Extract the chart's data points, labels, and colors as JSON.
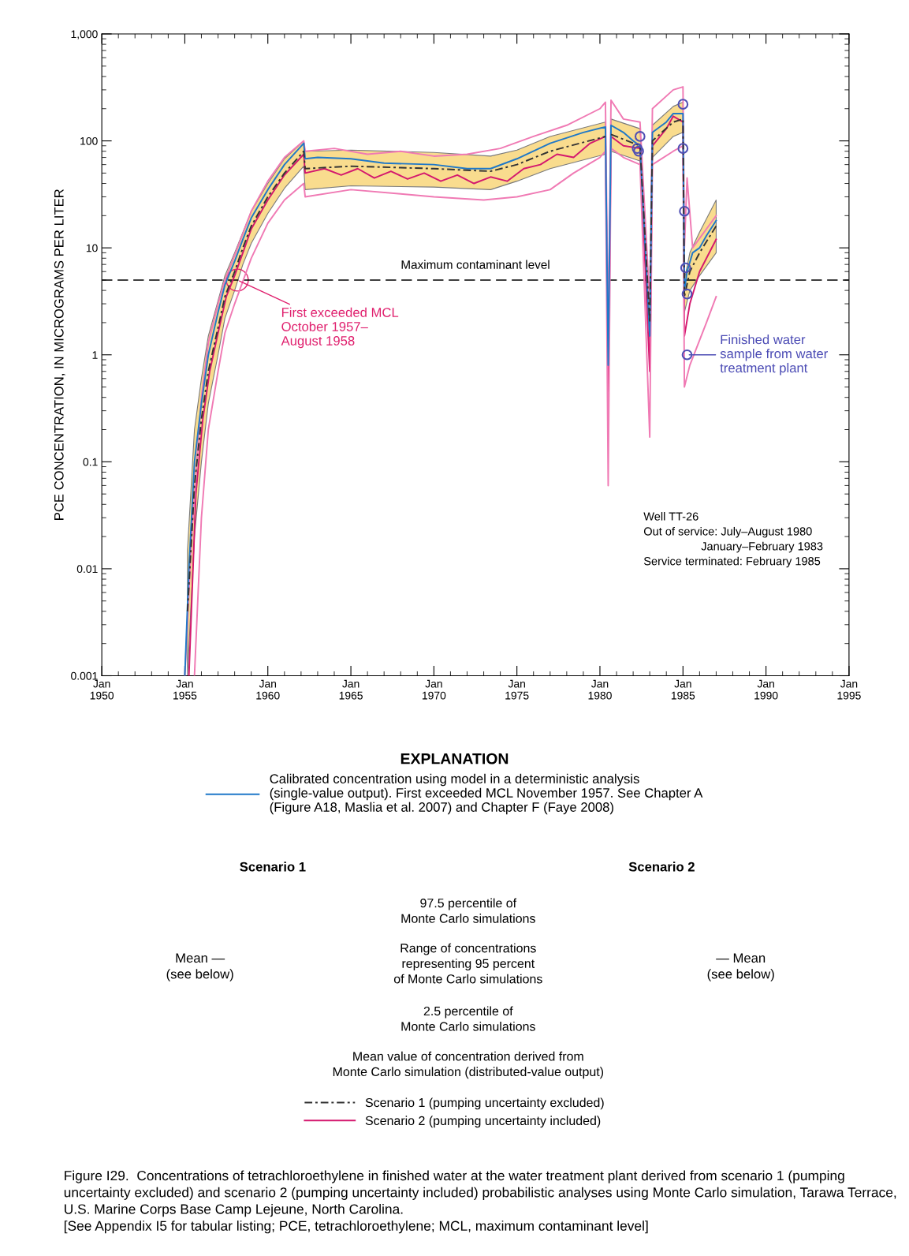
{
  "chart_data": {
    "type": "line",
    "ylabel": "PCE CONCENTRATION, IN MICROGRAMS PER LITER",
    "log": "y",
    "grid": false,
    "legend": "bottom",
    "legend_title": "EXPLANATION",
    "xlim": [
      "1950-01",
      "1995-01"
    ],
    "xticks": [
      {
        "value": "1950-01",
        "label": "Jan\n1950"
      },
      {
        "value": "1955-01",
        "label": "Jan\n1955"
      },
      {
        "value": "1960-01",
        "label": "Jan\n1960"
      },
      {
        "value": "1965-01",
        "label": "Jan\n1965"
      },
      {
        "value": "1970-01",
        "label": "Jan\n1970"
      },
      {
        "value": "1975-01",
        "label": "Jan\n1975"
      },
      {
        "value": "1980-01",
        "label": "Jan\n1980"
      },
      {
        "value": "1985-01",
        "label": "Jan\n1985"
      },
      {
        "value": "1990-01",
        "label": "Jan\n1990"
      },
      {
        "value": "1995-01",
        "label": "Jan\n1995"
      }
    ],
    "ylim": [
      0.001,
      1000
    ],
    "yticks": [
      {
        "value": 0.001,
        "label": "0.001"
      },
      {
        "value": 0.01,
        "label": "0.01"
      },
      {
        "value": 0.1,
        "label": "0.1"
      },
      {
        "value": 1,
        "label": "1"
      },
      {
        "value": 10,
        "label": "10"
      },
      {
        "value": 100,
        "label": "100"
      },
      {
        "value": 1000,
        "label": "1,000"
      }
    ],
    "ref_lines": [
      {
        "axis": "y",
        "value": 5,
        "label": "Maximum contaminant level",
        "color": "#000000",
        "line_style": "dashed"
      }
    ],
    "series": [
      {
        "name": "Calibrated concentration using model in a deterministic analysis\n(single-value output). First exceeded MCL November 1957. See Chapter A\n(Figure A18, Maslia et al. 2007) and Chapter F (Faye 2008)",
        "color": "#1f78c8",
        "line_style": "solid",
        "x": [
          "1955-01",
          "1955-04",
          "1955-08",
          "1956-01",
          "1956-06",
          "1957-01",
          "1957-06",
          "1958-01",
          "1958-07",
          "1959-01",
          "1960-01",
          "1961-01",
          "1962-03",
          "1962-04",
          "1963-01",
          "1965-01",
          "1967-01",
          "1970-01",
          "1972-01",
          "1973-06",
          "1975-01",
          "1977-01",
          "1979-01",
          "1980-05",
          "1980-07",
          "1980-09",
          "1981-06",
          "1982-01",
          "1982-06",
          "1983-01",
          "1983-03",
          "1984-01",
          "1984-06",
          "1985-01",
          "1985-02",
          "1985-04",
          "1985-08",
          "1986-01",
          "1986-06",
          "1987-01"
        ],
        "values": [
          0.001,
          0.01,
          0.1,
          0.35,
          1,
          2.5,
          4.5,
          7.5,
          12,
          19,
          35,
          60,
          95,
          68,
          70,
          68,
          62,
          60,
          55,
          55,
          68,
          95,
          120,
          135,
          0.8,
          140,
          120,
          100,
          90,
          1.5,
          120,
          150,
          180,
          180,
          4,
          6,
          9,
          10,
          13,
          18
        ]
      },
      {
        "name": "Scenario 1 (pumping uncertainty excluded)",
        "color": "#333333",
        "line_style": "dashed",
        "x": [
          "1955-03",
          "1955-08",
          "1956-01",
          "1956-06",
          "1957-01",
          "1957-06",
          "1958-01",
          "1958-07",
          "1959-01",
          "1960-01",
          "1961-01",
          "1962-03",
          "1962-04",
          "1965-01",
          "1970-01",
          "1973-06",
          "1975-01",
          "1977-01",
          "1980-05",
          "1980-07",
          "1980-09",
          "1982-06",
          "1983-01",
          "1983-03",
          "1984-06",
          "1985-01",
          "1985-02",
          "1985-06",
          "1986-01",
          "1987-01"
        ],
        "values": [
          0.004,
          0.06,
          0.25,
          0.7,
          1.8,
          3.5,
          6,
          10,
          16,
          30,
          50,
          80,
          55,
          58,
          55,
          52,
          60,
          80,
          110,
          null,
          115,
          90,
          2,
          100,
          150,
          160,
          3.5,
          6,
          9,
          16
        ],
        "lower": [
          0.001,
          0.02,
          0.1,
          0.35,
          1.0,
          2.2,
          4,
          7,
          11,
          21,
          36,
          58,
          35,
          38,
          37,
          35,
          42,
          55,
          75,
          0.7,
          80,
          65,
          1.3,
          70,
          110,
          120,
          2.5,
          4,
          5.5,
          9
        ],
        "upper": [
          0.015,
          0.2,
          0.6,
          1.5,
          3.2,
          5.5,
          9,
          14,
          22,
          40,
          68,
          100,
          80,
          82,
          78,
          72,
          82,
          110,
          150,
          1.5,
          160,
          130,
          3,
          140,
          210,
          230,
          5,
          9,
          14,
          28
        ]
      },
      {
        "name": "Scenario 2 (pumping uncertainty included)",
        "color": "#d4186e",
        "line_style": "solid",
        "x": [
          "1955-04",
          "1955-09",
          "1956-02",
          "1956-07",
          "1957-01",
          "1957-07",
          "1958-01",
          "1958-07",
          "1959-01",
          "1960-01",
          "1961-01",
          "1962-03",
          "1962-04",
          "1963-06",
          "1964-06",
          "1965-06",
          "1966-06",
          "1967-06",
          "1968-06",
          "1969-06",
          "1970-06",
          "1971-06",
          "1972-06",
          "1973-06",
          "1974-06",
          "1975-06",
          "1976-06",
          "1977-06",
          "1978-06",
          "1979-06",
          "1980-05",
          "1980-07",
          "1980-09",
          "1981-06",
          "1982-06",
          "1983-01",
          "1983-03",
          "1984-01",
          "1984-06",
          "1985-01",
          "1985-02",
          "1985-06",
          "1986-01",
          "1987-01"
        ],
        "values": [
          0.001,
          0.05,
          0.25,
          0.7,
          1.6,
          3.5,
          5.5,
          9,
          15,
          28,
          48,
          75,
          50,
          55,
          48,
          55,
          45,
          52,
          44,
          50,
          42,
          48,
          40,
          46,
          42,
          55,
          60,
          75,
          70,
          95,
          110,
          0.4,
          110,
          90,
          85,
          0.7,
          90,
          130,
          170,
          150,
          1.5,
          3,
          6,
          12
        ]
      },
      {
        "color": "#f07ab4",
        "line_style": "solid",
        "x": [
          "1955-01",
          "1955-06",
          "1956-01",
          "1956-06",
          "1957-01",
          "1957-06",
          "1958-01",
          "1959-01",
          "1960-01",
          "1961-01",
          "1962-03",
          "1962-04",
          "1964-01",
          "1966-01",
          "1968-01",
          "1970-01",
          "1972-01",
          "1974-01",
          "1976-01",
          "1978-01",
          "1980-01",
          "1980-05",
          "1980-07",
          "1980-09",
          "1981-06",
          "1982-06",
          "1983-01",
          "1983-03",
          "1984-06",
          "1985-01",
          "1985-02",
          "1985-04",
          "1985-08",
          "1986-06",
          "1987-01"
        ],
        "values": [
          0.001,
          0.02,
          0.4,
          1.3,
          3,
          5,
          8.5,
          22,
          42,
          70,
          100,
          80,
          85,
          75,
          80,
          72,
          75,
          85,
          110,
          140,
          200,
          230,
          1.5,
          240,
          160,
          150,
          3,
          200,
          300,
          320,
          10,
          45,
          10,
          15,
          20
        ]
      },
      {
        "color": "#f07ab4",
        "line_style": "solid",
        "x": [
          "1955-08",
          "1956-01",
          "1956-06",
          "1957-01",
          "1957-06",
          "1958-01",
          "1959-01",
          "1960-01",
          "1961-01",
          "1962-03",
          "1962-04",
          "1965-01",
          "1968-01",
          "1970-01",
          "1973-01",
          "1975-01",
          "1977-01",
          "1978-06",
          "1980-01",
          "1980-05",
          "1980-07",
          "1980-09",
          "1981-06",
          "1982-06",
          "1983-01",
          "1983-03",
          "1984-06",
          "1985-01",
          "1985-02",
          "1985-06",
          "1986-06",
          "1987-01"
        ],
        "values": [
          0.001,
          0.03,
          0.2,
          0.7,
          1.6,
          3,
          8,
          17,
          28,
          40,
          30,
          35,
          32,
          30,
          28,
          30,
          35,
          50,
          70,
          80,
          0.06,
          85,
          70,
          60,
          0.17,
          60,
          80,
          90,
          0.5,
          0.8,
          2,
          3.5
        ]
      },
      {
        "type": "scatter",
        "color": "#5050b4",
        "marker": "circle",
        "x": [
          "1982-06",
          "1982-04",
          "1982-05",
          "1985-01",
          "1985-01",
          "1985-02",
          "1985-03",
          "1985-04",
          "1985-04"
        ],
        "values": [
          110,
          85,
          80,
          220,
          85,
          22,
          6.5,
          3.7,
          1.0
        ]
      }
    ],
    "annotations": [
      {
        "text": "First exceeded MCL\nOctober 1957–\nAugust 1958",
        "x": "1958-03",
        "y": 5
      },
      {
        "text": "Finished water\nsample from water\ntreatment plant",
        "x": "1985-04",
        "y": 1.0
      },
      "Well TT-26\nOut of service: July–August 1980\n                  January–February 1983\nService terminated: February 1985",
      "Scenario 1",
      "Scenario 2",
      "97.5 percentile of\nMonte Carlo simulations",
      "Range of concentrations\nrepresenting 95 percent\nof Monte Carlo simulations",
      "2.5 percentile of\nMonte Carlo simulations",
      "Mean —\n(see below)",
      "— Mean\n(see below)",
      "Mean value of concentration derived from\nMonte Carlo simulation (distributed-value output)",
      "Figure I29.  Concentrations of tetrachloroethylene in finished water at the water treatment plant derived from scenario 1 (pumping uncertainty excluded) and scenario 2 (pumping uncertainty included) probabilistic analyses using Monte Carlo simulation, Tarawa Terrace, U.S. Marine Corps Base Camp Lejeune, North Carolina.\n[See Appendix I5 for tabular listing; PCE, tetrachloroethylene; MCL, maximum contaminant level]"
    ]
  }
}
